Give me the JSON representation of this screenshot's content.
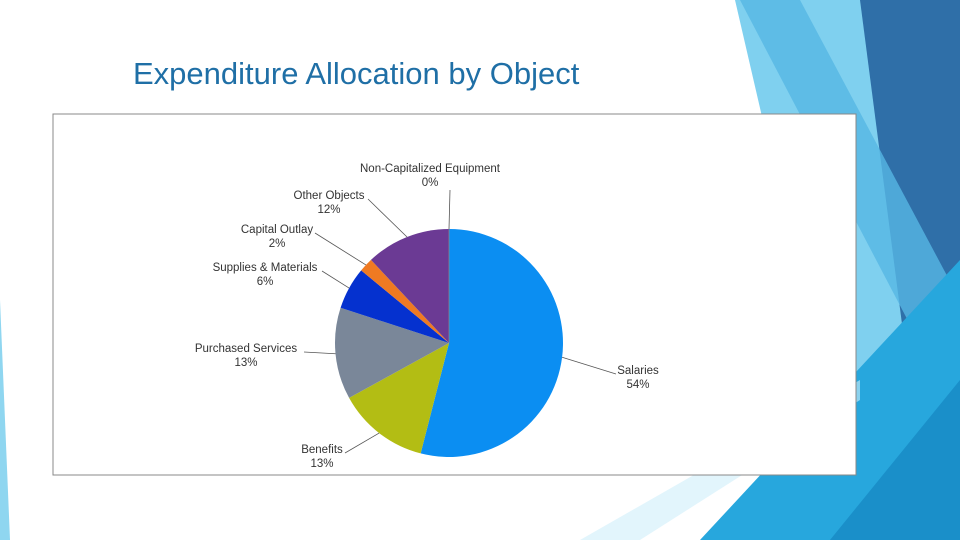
{
  "chart_data": {
    "type": "pie",
    "title": "Expenditure Allocation by Object",
    "categories": [
      "Salaries",
      "Benefits",
      "Purchased Services",
      "Supplies & Materials",
      "Capital Outlay",
      "Other Objects",
      "Non-Capitalized Equipment"
    ],
    "values": [
      54,
      13,
      13,
      6,
      2,
      12,
      0
    ],
    "value_labels": [
      "54%",
      "13%",
      "13%",
      "6%",
      "2%",
      "12%",
      "0%"
    ],
    "colors": [
      "#0b8ef2",
      "#b3bd14",
      "#7a8799",
      "#0531cf",
      "#ef7a22",
      "#6b3a94",
      "#4a6fa5"
    ]
  }
}
